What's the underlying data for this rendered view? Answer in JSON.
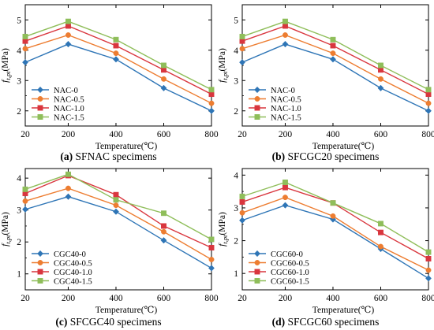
{
  "colors": {
    "s0": "#2e75b6",
    "s05": "#ed7d31",
    "s10": "#d9363e",
    "s15": "#8fbe5a",
    "axis": "#000000"
  },
  "chart_data": [
    {
      "type": "line",
      "panel_letter": "(a)",
      "panel_title": "SFNAC specimens",
      "xlabel": "Temperature(℃)",
      "ylabel": "f",
      "ylabel_sub": "t,pt",
      "ylabel_unit": "(MPa)",
      "x": [
        20,
        200,
        400,
        600,
        800
      ],
      "xlim": [
        20,
        800
      ],
      "ylim": [
        1.5,
        5.5
      ],
      "yticks": [
        2,
        3,
        4,
        5
      ],
      "xticks": [
        20,
        200,
        400,
        600,
        800
      ],
      "legend_position": "bottom-left",
      "series": [
        {
          "name": "NAC-0",
          "values": [
            3.6,
            4.2,
            3.7,
            2.75,
            2.0
          ]
        },
        {
          "name": "NAC-0.5",
          "values": [
            4.05,
            4.5,
            3.9,
            3.05,
            2.25
          ]
        },
        {
          "name": "NAC-1.0",
          "values": [
            4.3,
            4.8,
            4.15,
            3.35,
            2.55
          ]
        },
        {
          "name": "NAC-1.5",
          "values": [
            4.45,
            4.95,
            4.35,
            3.5,
            2.7
          ]
        }
      ]
    },
    {
      "type": "line",
      "panel_letter": "(b)",
      "panel_title": "SFCGC20 specimens",
      "xlabel": "Temperature(℃)",
      "ylabel": "f",
      "ylabel_sub": "t,pt",
      "ylabel_unit": "(MPa)",
      "x": [
        20,
        200,
        400,
        600,
        800
      ],
      "xlim": [
        20,
        800
      ],
      "ylim": [
        1.5,
        5.5
      ],
      "yticks": [
        2,
        3,
        4,
        5
      ],
      "xticks": [
        20,
        200,
        400,
        600,
        800
      ],
      "legend_position": "bottom-left",
      "series": [
        {
          "name": "NAC-0",
          "values": [
            3.6,
            4.2,
            3.7,
            2.75,
            2.0
          ]
        },
        {
          "name": "NAC-0.5",
          "values": [
            4.05,
            4.5,
            3.9,
            3.05,
            2.25
          ]
        },
        {
          "name": "NAC-1.0",
          "values": [
            4.3,
            4.8,
            4.15,
            3.35,
            2.55
          ]
        },
        {
          "name": "NAC-1.5",
          "values": [
            4.45,
            4.95,
            4.35,
            3.5,
            2.7
          ]
        }
      ]
    },
    {
      "type": "line",
      "panel_letter": "(c)",
      "panel_title": "SFCGC40 specimens",
      "xlabel": "Temperature(℃)",
      "ylabel": "f",
      "ylabel_sub": "t,pt",
      "ylabel_unit": "(MPa)",
      "x": [
        20,
        200,
        400,
        600,
        800
      ],
      "xlim": [
        20,
        800
      ],
      "ylim": [
        0.5,
        4.3
      ],
      "yticks": [
        1,
        2,
        3,
        4
      ],
      "xticks": [
        20,
        200,
        400,
        600,
        800
      ],
      "legend_position": "bottom-left",
      "series": [
        {
          "name": "CGC40-0",
          "values": [
            3.02,
            3.42,
            2.95,
            2.05,
            1.18
          ]
        },
        {
          "name": "CGC40-0.5",
          "values": [
            3.28,
            3.68,
            3.15,
            2.32,
            1.45
          ]
        },
        {
          "name": "CGC40-1.0",
          "values": [
            3.52,
            4.08,
            3.48,
            2.5,
            1.82
          ]
        },
        {
          "name": "CGC40-1.5",
          "values": [
            3.65,
            4.12,
            3.32,
            2.9,
            2.08
          ]
        }
      ]
    },
    {
      "type": "line",
      "panel_letter": "(d)",
      "panel_title": "SFCGC60 specimens",
      "xlabel": "Temperature(℃)",
      "ylabel": "f",
      "ylabel_sub": "t,pt",
      "ylabel_unit": "(MPa)",
      "x": [
        20,
        200,
        400,
        600,
        800
      ],
      "xlim": [
        20,
        800
      ],
      "ylim": [
        0.5,
        4.2
      ],
      "yticks": [
        1,
        2,
        3,
        4
      ],
      "xticks": [
        20,
        200,
        400,
        600,
        800
      ],
      "legend_position": "bottom-left",
      "series": [
        {
          "name": "CGC60-0",
          "values": [
            2.62,
            3.08,
            2.65,
            1.75,
            0.85
          ]
        },
        {
          "name": "CGC60-0.5",
          "values": [
            2.85,
            3.32,
            2.75,
            1.82,
            1.1
          ]
        },
        {
          "name": "CGC60-1.0",
          "values": [
            3.18,
            3.62,
            3.15,
            2.25,
            1.45
          ]
        },
        {
          "name": "CGC60-1.5",
          "values": [
            3.35,
            3.78,
            3.15,
            2.52,
            1.65
          ]
        }
      ]
    }
  ]
}
